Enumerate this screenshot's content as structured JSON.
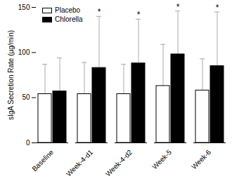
{
  "chart_data": {
    "type": "bar",
    "y_label": "sIgA Secretion Rate (µg/min)",
    "categories": [
      "Baseline",
      "Week-4-d1",
      "Week-4-d2",
      "Week-5",
      "Week-6"
    ],
    "series": [
      {
        "name": "Placebo",
        "color": "#ffffff",
        "values": [
          54,
          54,
          54,
          63,
          58
        ],
        "errors": [
          33,
          35,
          33,
          46,
          35
        ]
      },
      {
        "name": "Chlorella",
        "color": "#000000",
        "values": [
          57,
          83,
          88,
          98,
          85
        ],
        "errors": [
          37,
          57,
          49,
          48,
          60
        ],
        "significance": [
          null,
          "*",
          "*",
          "*",
          "*"
        ]
      }
    ],
    "ylim": [
      0,
      150
    ],
    "yticks": [
      0,
      50,
      100,
      150
    ],
    "legend": "top-left"
  }
}
